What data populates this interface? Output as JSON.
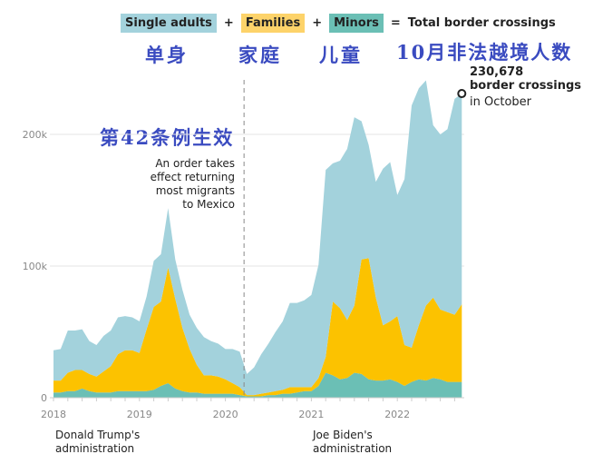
{
  "legend": {
    "single": "Single adults",
    "plus1": "+",
    "families": "Families",
    "plus2": "+",
    "minors": "Minors",
    "eq": "=",
    "total": "Total border crossings"
  },
  "overlay_cn": {
    "single": "单身",
    "families": "家庭",
    "minors": "儿童",
    "october": "10月非法越境人数",
    "title42": "第42条例生效"
  },
  "callout": {
    "value": "230,678",
    "line2": "border crossings",
    "line3": "in October"
  },
  "order_note": [
    "An order takes",
    "effect returning",
    "most migrants",
    "to Mexico"
  ],
  "admin": {
    "trump": [
      "Donald Trump's",
      "administration"
    ],
    "biden": [
      "Joe Biden's",
      "administration"
    ]
  },
  "colors": {
    "single": "#a3d2dc",
    "families": "#fcc200",
    "minors": "#6bbfb5",
    "families_chip": "#fdd36a"
  },
  "chart_data": {
    "type": "area",
    "stacked": true,
    "x_start": "2018-01",
    "x_end": "2022-10",
    "interval": "month",
    "x_ticks": [
      "2018",
      "2019",
      "2020",
      "2021",
      "2022"
    ],
    "y_ticks": [
      "0",
      "100k",
      "200k"
    ],
    "ylim": [
      0,
      250000
    ],
    "annotation_event": "2020-03 (order takes effect)",
    "series": [
      {
        "name": "Minors",
        "values": [
          4,
          4,
          5,
          5,
          7,
          5,
          4,
          4,
          4,
          5,
          5,
          5,
          5,
          5,
          6,
          9,
          11,
          7,
          5,
          4,
          4,
          3,
          3,
          3,
          3,
          3,
          2,
          1,
          1,
          1,
          2,
          2,
          3,
          3,
          4,
          5,
          5,
          9,
          19,
          17,
          14,
          15,
          19,
          18,
          14,
          13,
          13,
          14,
          12,
          9,
          12,
          14,
          13,
          15,
          14,
          12,
          12,
          12
        ]
      },
      {
        "name": "Families",
        "values": [
          9,
          9,
          14,
          16,
          14,
          13,
          12,
          16,
          20,
          28,
          31,
          31,
          29,
          47,
          63,
          64,
          88,
          68,
          48,
          33,
          21,
          14,
          14,
          13,
          11,
          8,
          6,
          1,
          1,
          2,
          2,
          3,
          3,
          5,
          4,
          3,
          3,
          6,
          12,
          56,
          54,
          44,
          51,
          87,
          92,
          63,
          42,
          44,
          50,
          31,
          26,
          41,
          57,
          61,
          53,
          53,
          51,
          59
        ]
      },
      {
        "name": "Single adults",
        "values": [
          23,
          24,
          32,
          30,
          31,
          25,
          24,
          27,
          27,
          28,
          26,
          25,
          24,
          25,
          35,
          36,
          45,
          30,
          29,
          26,
          28,
          29,
          26,
          25,
          23,
          26,
          27,
          16,
          21,
          30,
          37,
          45,
          52,
          64,
          64,
          66,
          70,
          86,
          142,
          105,
          112,
          130,
          143,
          105,
          86,
          88,
          119,
          121,
          92,
          126,
          184,
          180,
          171,
          131,
          133,
          139,
          164,
          160
        ]
      }
    ],
    "value_unit": "thousands"
  }
}
